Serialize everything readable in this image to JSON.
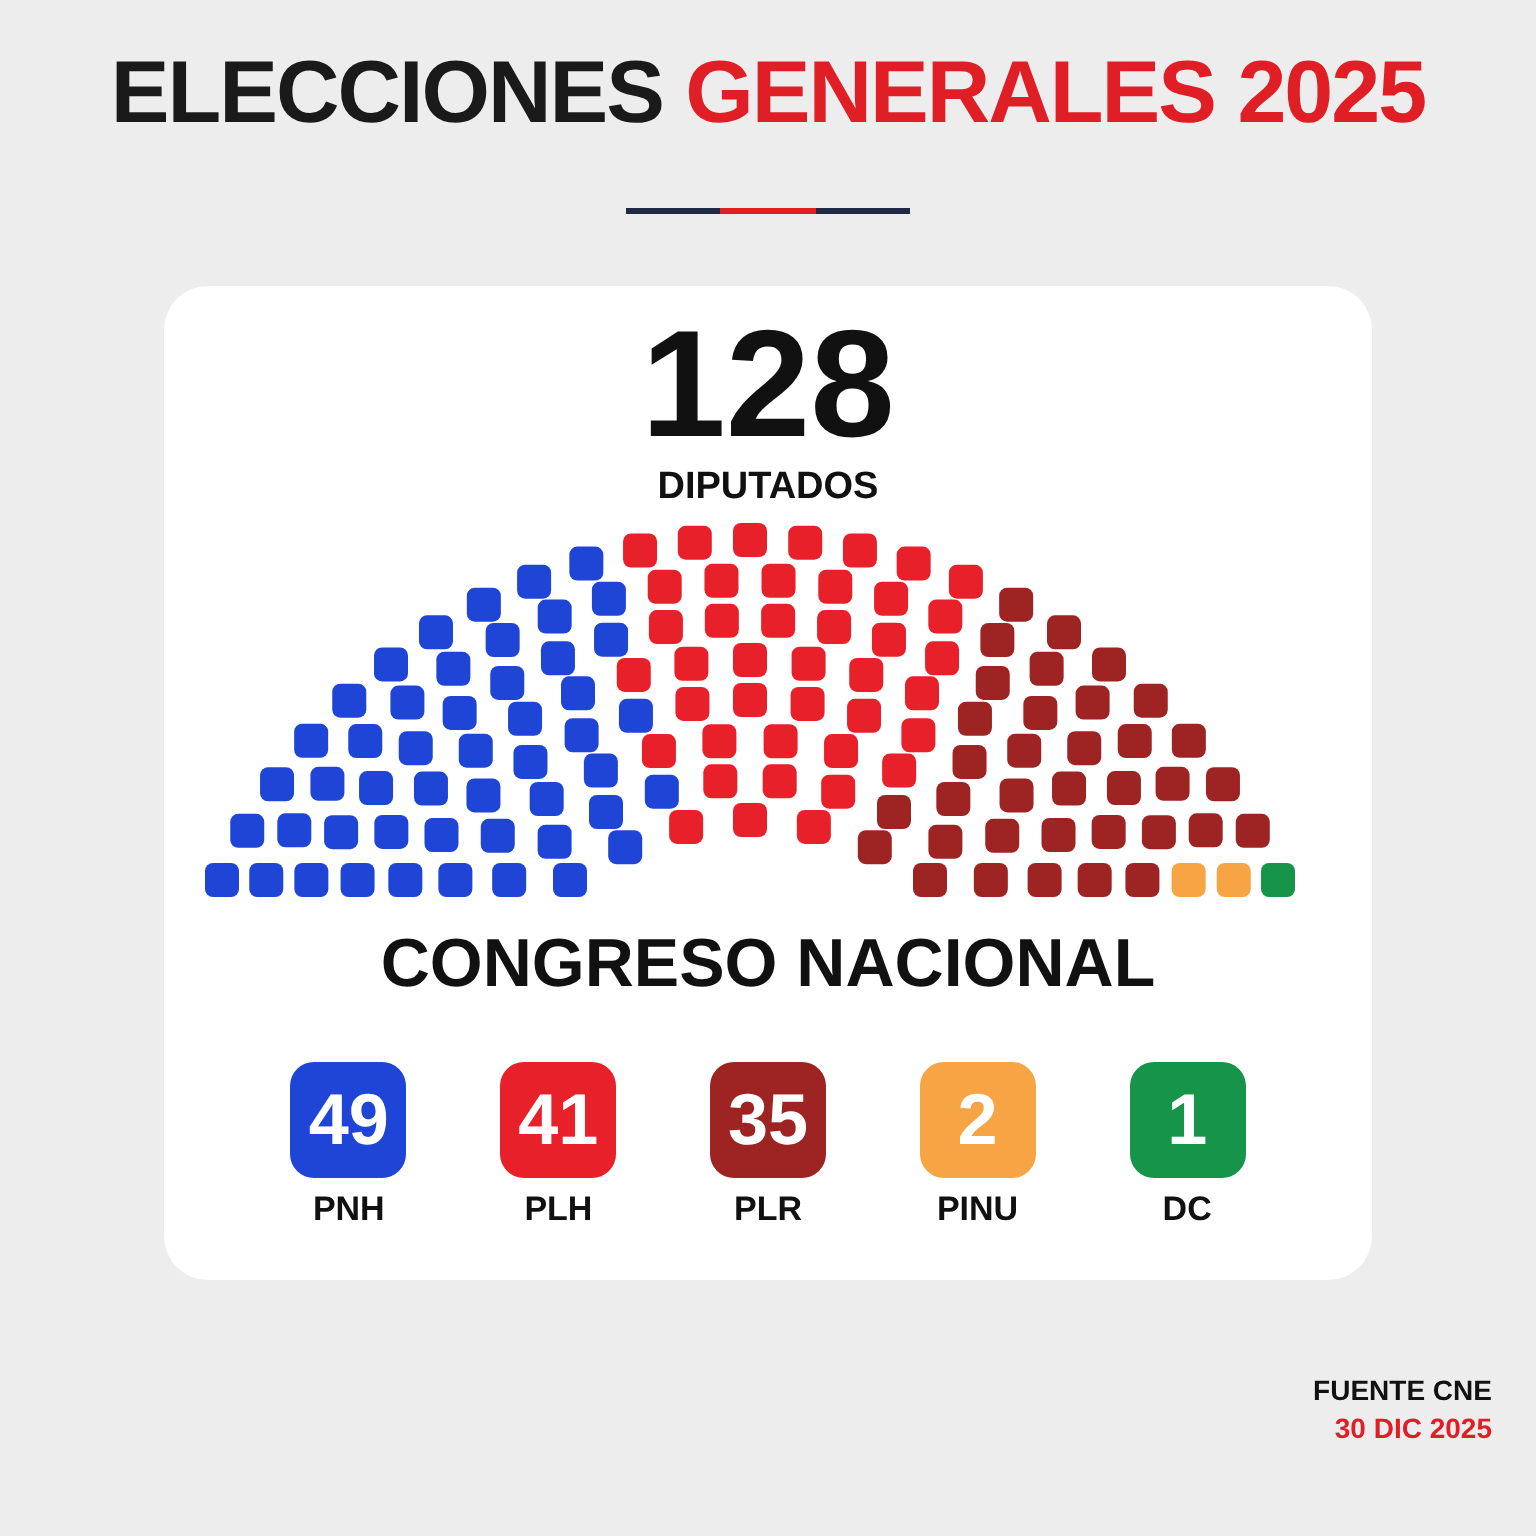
{
  "chart_data": {
    "type": "other",
    "title": "ELECCIONES GENERALES 2025",
    "subtitle": "DIPUTADOS",
    "xlabel": "CONGRESO NACIONAL",
    "categories": [
      "PNH",
      "PLH",
      "PLR",
      "PINU",
      "DC"
    ],
    "values": [
      49,
      41,
      35,
      2,
      1
    ],
    "colors": [
      "#1f45d6",
      "#e8202a",
      "#9e2424",
      "#f7a445",
      "#16944a"
    ],
    "data_labels": true,
    "annotations": [
      "128",
      "FUENTE CNE",
      "30 DIC 2025"
    ]
  }
}
